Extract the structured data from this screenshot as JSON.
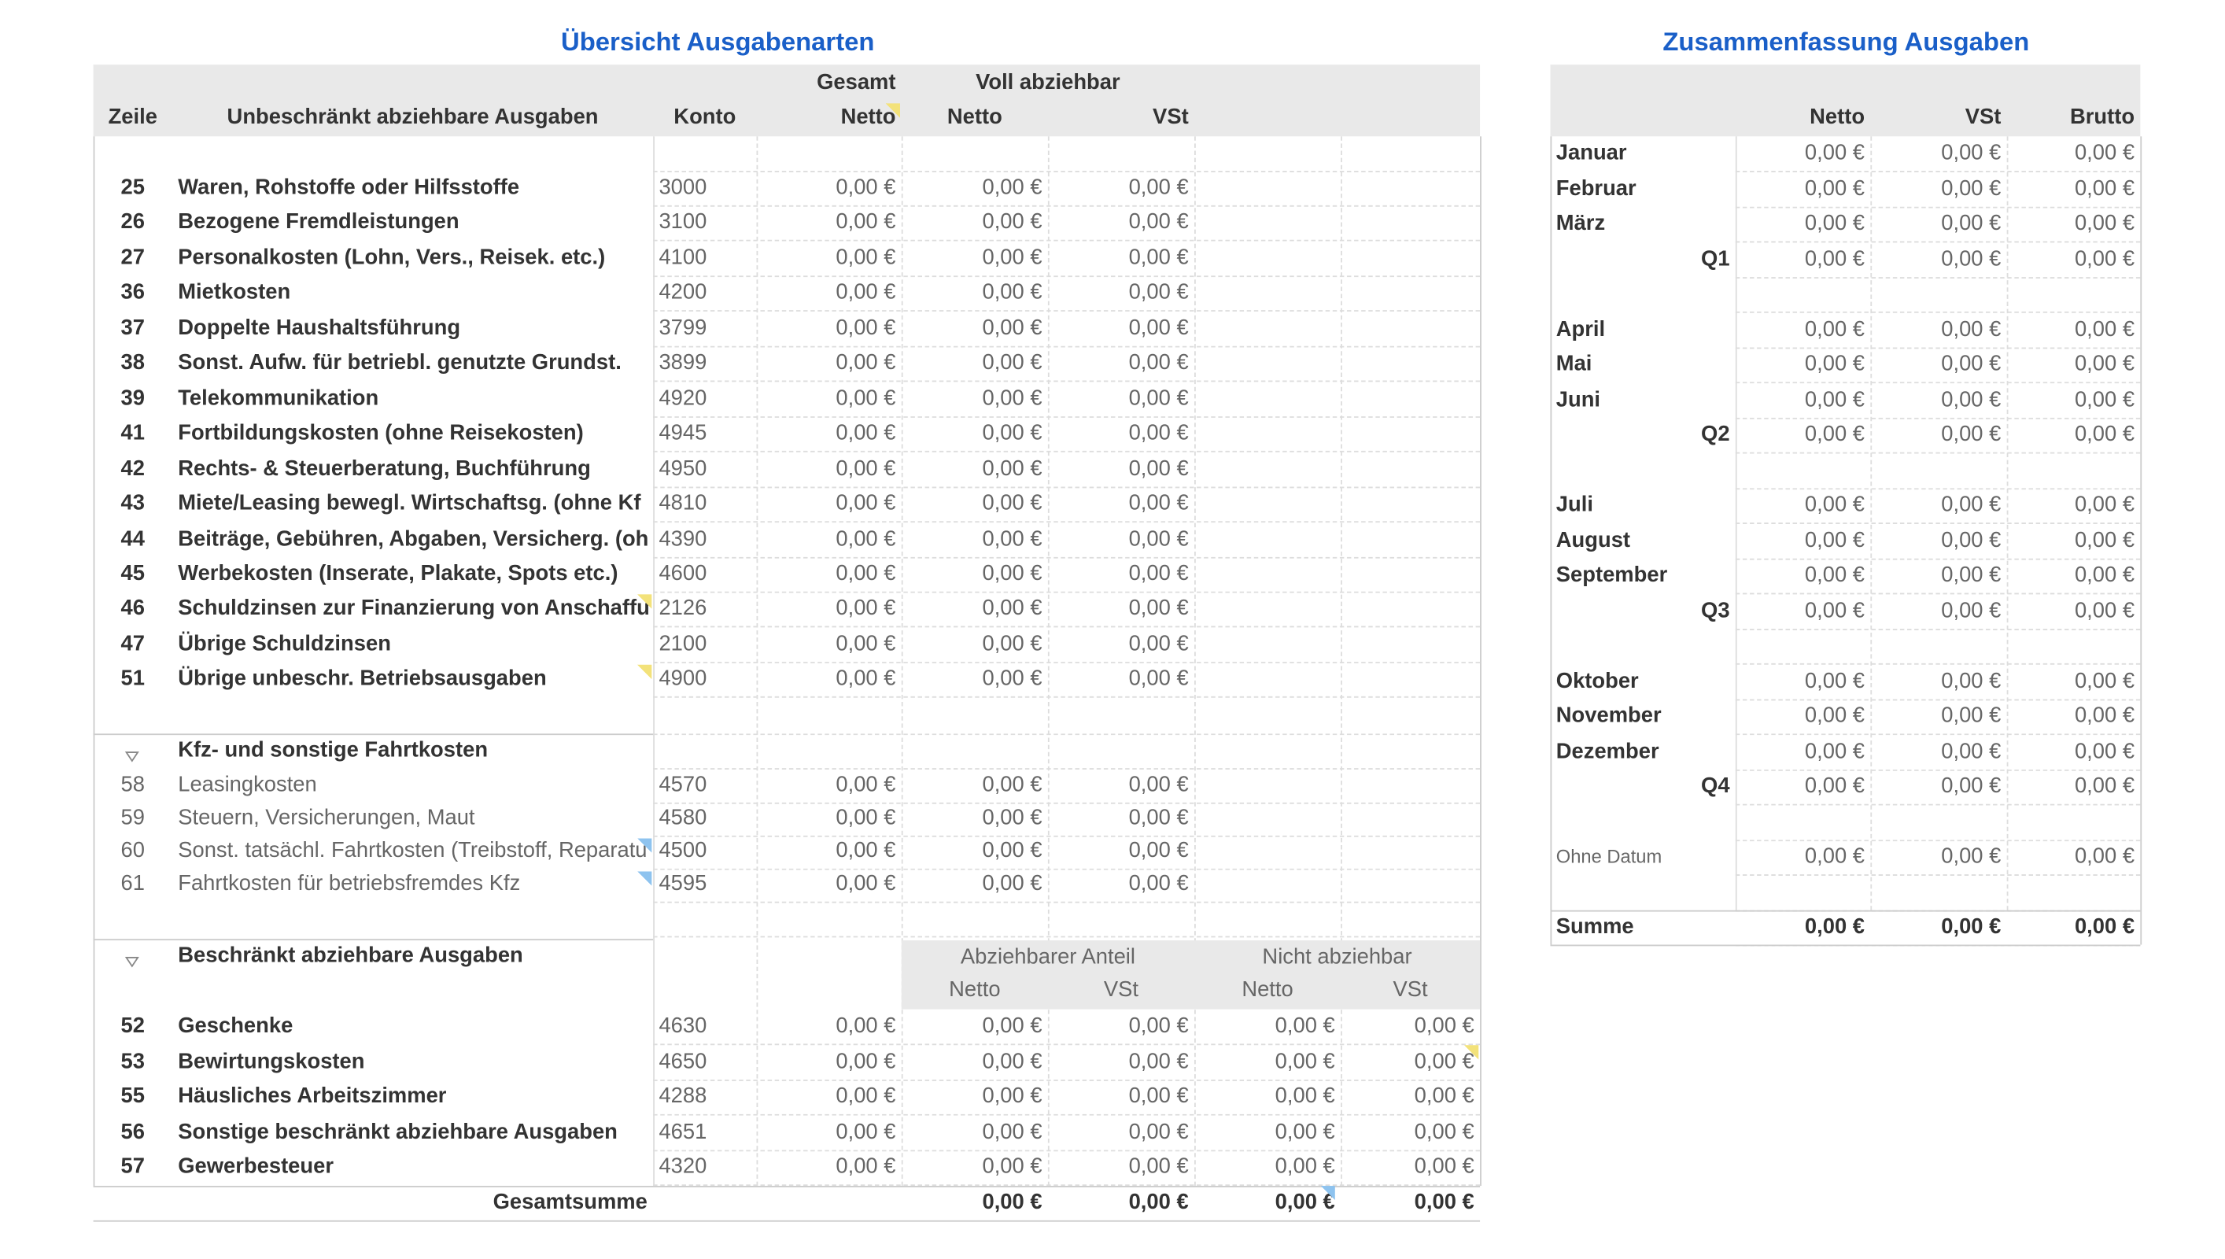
{
  "left": {
    "title": "Übersicht Ausgabenarten",
    "header": {
      "group_gesamt": "Gesamt",
      "group_voll": "Voll abziehbar",
      "zeile": "Zeile",
      "description": "Unbeschränkt abziehbare Ausgaben",
      "konto": "Konto",
      "columns": [
        "Netto",
        "Netto",
        "VSt"
      ]
    },
    "rows": [
      [
        "25",
        "Waren, Rohstoffe oder Hilfsstoffe",
        "3000",
        "0,00 €",
        "0,00 €",
        "0,00 €"
      ],
      [
        "26",
        "Bezogene Fremdleistungen",
        "3100",
        "0,00 €",
        "0,00 €",
        "0,00 €"
      ],
      [
        "27",
        "Personalkosten (Lohn, Vers., Reisek. etc.)",
        "4100",
        "0,00 €",
        "0,00 €",
        "0,00 €"
      ],
      [
        "36",
        "Mietkosten",
        "4200",
        "0,00 €",
        "0,00 €",
        "0,00 €"
      ],
      [
        "37",
        "Doppelte Haushaltsführung",
        "3799",
        "0,00 €",
        "0,00 €",
        "0,00 €"
      ],
      [
        "38",
        "Sonst. Aufw. für betriebl. genutzte Grundst.",
        "3899",
        "0,00 €",
        "0,00 €",
        "0,00 €"
      ],
      [
        "39",
        "Telekommunikation",
        "4920",
        "0,00 €",
        "0,00 €",
        "0,00 €"
      ],
      [
        "41",
        "Fortbildungskosten (ohne Reisekosten)",
        "4945",
        "0,00 €",
        "0,00 €",
        "0,00 €"
      ],
      [
        "42",
        "Rechts- & Steuerberatung, Buchführung",
        "4950",
        "0,00 €",
        "0,00 €",
        "0,00 €"
      ],
      [
        "43",
        "Miete/Leasing bewegl. Wirtschaftsg. (ohne Kf",
        "4810",
        "0,00 €",
        "0,00 €",
        "0,00 €"
      ],
      [
        "44",
        "Beiträge, Gebühren, Abgaben, Versicherg. (oh",
        "4390",
        "0,00 €",
        "0,00 €",
        "0,00 €"
      ],
      [
        "45",
        "Werbekosten (Inserate, Plakate, Spots etc.)",
        "4600",
        "0,00 €",
        "0,00 €",
        "0,00 €"
      ],
      [
        "46",
        "Schuldzinsen zur Finanzierung von Anschaffu",
        "2126",
        "0,00 €",
        "0,00 €",
        "0,00 €"
      ],
      [
        "47",
        "Übrige Schuldzinsen",
        "2100",
        "0,00 €",
        "0,00 €",
        "0,00 €"
      ],
      [
        "51",
        "Übrige unbeschr. Betriebsausgaben",
        "4900",
        "0,00 €",
        "0,00 €",
        "0,00 €"
      ]
    ],
    "kfz": {
      "title": "Kfz- und sonstige Fahrtkosten",
      "rows": [
        [
          "58",
          "Leasingkosten",
          "4570",
          "0,00 €",
          "0,00 €",
          "0,00 €"
        ],
        [
          "59",
          "Steuern, Versicherungen, Maut",
          "4580",
          "0,00 €",
          "0,00 €",
          "0,00 €"
        ],
        [
          "60",
          "Sonst. tatsächl. Fahrtkosten (Treibstoff, Reparatu",
          "4500",
          "0,00 €",
          "0,00 €",
          "0,00 €"
        ],
        [
          "61",
          "Fahrtkosten für betriebsfremdes Kfz",
          "4595",
          "0,00 €",
          "0,00 €",
          "0,00 €"
        ]
      ]
    },
    "restricted": {
      "title": "Beschränkt abziehbare Ausgaben",
      "groups": [
        "Abziehbarer Anteil",
        "Nicht abziehbar"
      ],
      "columns": [
        "Netto",
        "VSt",
        "Netto",
        "VSt"
      ],
      "rows": [
        [
          "52",
          "Geschenke",
          "4630",
          "0,00 €",
          "0,00 €",
          "0,00 €",
          "0,00 €",
          "0,00 €"
        ],
        [
          "53",
          "Bewirtungskosten",
          "4650",
          "0,00 €",
          "0,00 €",
          "0,00 €",
          "0,00 €",
          "0,00 €"
        ],
        [
          "55",
          "Häusliches Arbeitszimmer",
          "4288",
          "0,00 €",
          "0,00 €",
          "0,00 €",
          "0,00 €",
          "0,00 €"
        ],
        [
          "56",
          "Sonstige beschränkt abziehbare Ausgaben",
          "4651",
          "0,00 €",
          "0,00 €",
          "0,00 €",
          "0,00 €",
          "0,00 €"
        ],
        [
          "57",
          "Gewerbesteuer",
          "4320",
          "0,00 €",
          "0,00 €",
          "0,00 €",
          "0,00 €",
          "0,00 €"
        ]
      ]
    },
    "total": {
      "label": "Gesamtsumme",
      "values": [
        "0,00 €",
        "0,00 €",
        "0,00 €",
        "0,00 €"
      ]
    }
  },
  "right": {
    "title": "Zusammenfassung Ausgaben",
    "columns": [
      "Netto",
      "VSt",
      "Brutto"
    ],
    "quarters": [
      {
        "months": [
          {
            "label": "Januar",
            "values": [
              "0,00 €",
              "0,00 €",
              "0,00 €"
            ]
          },
          {
            "label": "Februar",
            "values": [
              "0,00 €",
              "0,00 €",
              "0,00 €"
            ]
          },
          {
            "label": "März",
            "values": [
              "0,00 €",
              "0,00 €",
              "0,00 €"
            ]
          }
        ],
        "total": {
          "label": "Q1",
          "values": [
            "0,00 €",
            "0,00 €",
            "0,00 €"
          ]
        }
      },
      {
        "months": [
          {
            "label": "April",
            "values": [
              "0,00 €",
              "0,00 €",
              "0,00 €"
            ]
          },
          {
            "label": "Mai",
            "values": [
              "0,00 €",
              "0,00 €",
              "0,00 €"
            ]
          },
          {
            "label": "Juni",
            "values": [
              "0,00 €",
              "0,00 €",
              "0,00 €"
            ]
          }
        ],
        "total": {
          "label": "Q2",
          "values": [
            "0,00 €",
            "0,00 €",
            "0,00 €"
          ]
        }
      },
      {
        "months": [
          {
            "label": "Juli",
            "values": [
              "0,00 €",
              "0,00 €",
              "0,00 €"
            ]
          },
          {
            "label": "August",
            "values": [
              "0,00 €",
              "0,00 €",
              "0,00 €"
            ]
          },
          {
            "label": "September",
            "values": [
              "0,00 €",
              "0,00 €",
              "0,00 €"
            ]
          }
        ],
        "total": {
          "label": "Q3",
          "values": [
            "0,00 €",
            "0,00 €",
            "0,00 €"
          ]
        }
      },
      {
        "months": [
          {
            "label": "Oktober",
            "values": [
              "0,00 €",
              "0,00 €",
              "0,00 €"
            ]
          },
          {
            "label": "November",
            "values": [
              "0,00 €",
              "0,00 €",
              "0,00 €"
            ]
          },
          {
            "label": "Dezember",
            "values": [
              "0,00 €",
              "0,00 €",
              "0,00 €"
            ]
          }
        ],
        "total": {
          "label": "Q4",
          "values": [
            "0,00 €",
            "0,00 €",
            "0,00 €"
          ]
        }
      }
    ],
    "undated": {
      "label": "Ohne Datum",
      "values": [
        "0,00 €",
        "0,00 €",
        "0,00 €"
      ]
    },
    "sum": {
      "label": "Summe",
      "values": [
        "0,00 €",
        "0,00 €",
        "0,00 €"
      ]
    }
  }
}
